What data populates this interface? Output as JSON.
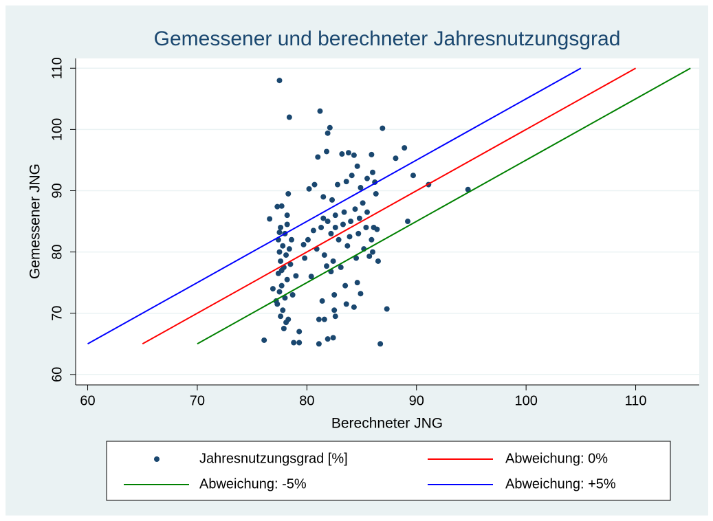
{
  "chart_data": {
    "type": "scatter",
    "title": "Gemessener und berechneter Jahresnutzungsgrad",
    "x_label": "Berechneter JNG",
    "y_label": "Gemessener JNG",
    "xlim": [
      58.9,
      115.8
    ],
    "ylim": [
      58.3,
      111.6
    ],
    "xticks": [
      60,
      70,
      80,
      90,
      100,
      110
    ],
    "yticks": [
      60,
      70,
      80,
      90,
      100,
      110
    ],
    "grid": true,
    "legend": "bottom",
    "series": [
      {
        "name": "Jahresnutzungsgrad [%]",
        "type": "scatter",
        "color": "#1a476f",
        "x": [
          77.5,
          78.4,
          77.3,
          77.7,
          78.2,
          77.6,
          78,
          77.4,
          77.8,
          77.5,
          78.1,
          77.6,
          77.9,
          77.4,
          78.2,
          77.7,
          77.5,
          78,
          77.3,
          77.8,
          77.6,
          78.1,
          77.9,
          78.3,
          77.2,
          78.5,
          78.6,
          76.9,
          76.6,
          78.3,
          79.3,
          78.8,
          79.3,
          76.1,
          78.7,
          79,
          78.2,
          77.5,
          78.4,
          77.7,
          81.2,
          82.1,
          81.9,
          81.8,
          81,
          80.7,
          80.2,
          81.5,
          82.3,
          82.8,
          83.2,
          83.8,
          84.3,
          84.6,
          84.1,
          83.6,
          84.9,
          85.5,
          85.9,
          86,
          86.2,
          86.3,
          85.1,
          84.4,
          83.4,
          82.6,
          81.9,
          81.3,
          80.6,
          80.1,
          79.7,
          80.9,
          81.6,
          82.4,
          83.1,
          83.9,
          84.7,
          85.4,
          85.9,
          86,
          85.2,
          84.5,
          83.7,
          82.9,
          82.2,
          81.5,
          82.6,
          83.3,
          84,
          84.8,
          85.5,
          86.1,
          86.4,
          86.5,
          85.7,
          84.6,
          84.9,
          83.5,
          82.5,
          81.4,
          81.1,
          81.6,
          82.6,
          82.5,
          83.6,
          84.3,
          82.2,
          81.8,
          80.4,
          79.8,
          86.9,
          88.9,
          88.1,
          89.7,
          91.1,
          94.7,
          89.2,
          87.3,
          86.7,
          81.1,
          82.4,
          81.9
        ],
        "values": [
          108,
          102,
          87.4,
          87.5,
          86,
          84,
          83,
          82,
          81,
          80,
          79.5,
          78.5,
          77.5,
          76.5,
          75.5,
          74.5,
          73.5,
          72.5,
          71.5,
          70.5,
          69.5,
          68.5,
          67.5,
          69,
          72,
          78,
          82,
          74,
          85.4,
          89.5,
          67,
          65.2,
          65.2,
          65.6,
          73,
          76.1,
          84.5,
          83.2,
          80.5,
          77,
          103,
          100.3,
          99.4,
          96.4,
          95.5,
          91,
          90.3,
          89,
          88.5,
          91,
          96,
          96.2,
          95.8,
          94,
          92.5,
          91.5,
          90.5,
          92,
          95.9,
          93,
          91.4,
          89.5,
          88,
          87,
          86.5,
          86,
          85,
          84,
          83.5,
          82,
          81.2,
          80.5,
          79.5,
          78.5,
          77.5,
          82.5,
          83,
          84,
          82,
          80,
          80.5,
          79,
          81,
          82,
          83,
          85.5,
          84,
          84.5,
          85,
          85.5,
          86.5,
          84,
          83.7,
          78.5,
          79.3,
          75,
          73.2,
          74.5,
          73,
          72,
          69,
          69,
          69.5,
          70.5,
          71.5,
          71,
          76.8,
          77.7,
          76,
          79,
          100.2,
          97,
          95.3,
          92.5,
          91,
          90.2,
          85,
          70.7,
          65,
          65,
          66,
          65.8
        ]
      },
      {
        "name": "Abweichung: 0%",
        "type": "line",
        "color": "#ff0000",
        "x": [
          65,
          110
        ],
        "values": [
          65,
          110
        ]
      },
      {
        "name": "Abweichung: -5%",
        "type": "line",
        "color": "#008000",
        "x": [
          70,
          115
        ],
        "values": [
          65,
          110
        ]
      },
      {
        "name": "Abweichung: +5%",
        "type": "line",
        "color": "#0000ff",
        "x": [
          60,
          105
        ],
        "values": [
          65,
          110
        ]
      }
    ]
  }
}
